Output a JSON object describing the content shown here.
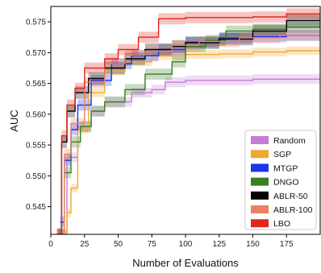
{
  "chart_data": {
    "type": "line",
    "title": "",
    "xlabel": "Number of Evaluations",
    "ylabel": "AUC",
    "xlim": [
      0,
      200
    ],
    "ylim": [
      0.5405,
      0.5775
    ],
    "xticks": [
      0,
      25,
      50,
      75,
      100,
      125,
      150,
      175
    ],
    "yticks": [
      0.545,
      0.55,
      0.555,
      0.56,
      0.565,
      0.57,
      0.575
    ],
    "xtick_labels": [
      "0",
      "25",
      "50",
      "75",
      "100",
      "125",
      "150",
      "175"
    ],
    "ytick_labels": [
      "0.545",
      "0.550",
      "0.555",
      "0.560",
      "0.565",
      "0.570",
      "0.575"
    ],
    "grid": false,
    "legend_position": "bottom-right",
    "shaded_band": "confidence interval around each series",
    "series": [
      {
        "name": "Random",
        "color": "#c77cd6",
        "band": 0.0008,
        "points": [
          [
            5,
            0.5405
          ],
          [
            12,
            0.553
          ],
          [
            20,
            0.558
          ],
          [
            30,
            0.5605
          ],
          [
            40,
            0.562
          ],
          [
            60,
            0.5635
          ],
          [
            75,
            0.564
          ],
          [
            85,
            0.5652
          ],
          [
            100,
            0.5655
          ],
          [
            150,
            0.5657
          ],
          [
            200,
            0.5657
          ]
        ]
      },
      {
        "name": "SGP",
        "color": "#f0a830",
        "band": 0.0007,
        "points": [
          [
            8,
            0.5405
          ],
          [
            12,
            0.544
          ],
          [
            15,
            0.548
          ],
          [
            20,
            0.5575
          ],
          [
            28,
            0.5635
          ],
          [
            40,
            0.567
          ],
          [
            55,
            0.5685
          ],
          [
            75,
            0.5695
          ],
          [
            100,
            0.5697
          ],
          [
            125,
            0.5698
          ],
          [
            150,
            0.5701
          ],
          [
            175,
            0.5703
          ],
          [
            200,
            0.5704
          ]
        ]
      },
      {
        "name": "MTGP",
        "color": "#1c34e8",
        "band": 0.0009,
        "points": [
          [
            7,
            0.5425
          ],
          [
            10,
            0.5525
          ],
          [
            15,
            0.5575
          ],
          [
            20,
            0.5615
          ],
          [
            30,
            0.5655
          ],
          [
            45,
            0.5682
          ],
          [
            60,
            0.5695
          ],
          [
            80,
            0.5705
          ],
          [
            100,
            0.5717
          ],
          [
            125,
            0.5724
          ],
          [
            150,
            0.5726
          ],
          [
            175,
            0.5728
          ],
          [
            200,
            0.5729
          ]
        ]
      },
      {
        "name": "DNGO",
        "color": "#3a7d22",
        "band": 0.0009,
        "points": [
          [
            6,
            0.5405
          ],
          [
            10,
            0.5505
          ],
          [
            15,
            0.5555
          ],
          [
            22,
            0.558
          ],
          [
            30,
            0.5605
          ],
          [
            40,
            0.562
          ],
          [
            55,
            0.564
          ],
          [
            70,
            0.5665
          ],
          [
            90,
            0.5685
          ],
          [
            100,
            0.571
          ],
          [
            115,
            0.572
          ],
          [
            130,
            0.5735
          ],
          [
            150,
            0.5738
          ],
          [
            175,
            0.5741
          ],
          [
            200,
            0.5742
          ]
        ]
      },
      {
        "name": "ABLR-50",
        "color": "#000000",
        "band": 0.001,
        "points": [
          [
            5,
            0.5405
          ],
          [
            8,
            0.5555
          ],
          [
            12,
            0.5605
          ],
          [
            18,
            0.5635
          ],
          [
            28,
            0.5658
          ],
          [
            40,
            0.5675
          ],
          [
            55,
            0.569
          ],
          [
            70,
            0.5705
          ],
          [
            90,
            0.571
          ],
          [
            100,
            0.5716
          ],
          [
            125,
            0.5722
          ],
          [
            150,
            0.5735
          ],
          [
            175,
            0.5752
          ],
          [
            200,
            0.5755
          ]
        ]
      },
      {
        "name": "ABLR-100",
        "color": "#ec8060",
        "band": 0.0009,
        "points": [
          [
            5,
            0.5405
          ],
          [
            10,
            0.5535
          ],
          [
            15,
            0.5585
          ],
          [
            25,
            0.5652
          ],
          [
            40,
            0.5682
          ],
          [
            55,
            0.5696
          ],
          [
            70,
            0.5702
          ],
          [
            90,
            0.5712
          ],
          [
            110,
            0.5718
          ],
          [
            140,
            0.5724
          ],
          [
            170,
            0.5728
          ],
          [
            200,
            0.5731
          ]
        ]
      },
      {
        "name": "LBO",
        "color": "#e2261e",
        "band": 0.0009,
        "points": [
          [
            4,
            0.5405
          ],
          [
            8,
            0.5565
          ],
          [
            12,
            0.5615
          ],
          [
            18,
            0.5642
          ],
          [
            25,
            0.5675
          ],
          [
            40,
            0.569
          ],
          [
            50,
            0.5705
          ],
          [
            65,
            0.5725
          ],
          [
            80,
            0.5755
          ],
          [
            100,
            0.5757
          ],
          [
            150,
            0.5758
          ],
          [
            175,
            0.5763
          ],
          [
            200,
            0.5765
          ]
        ]
      }
    ]
  }
}
